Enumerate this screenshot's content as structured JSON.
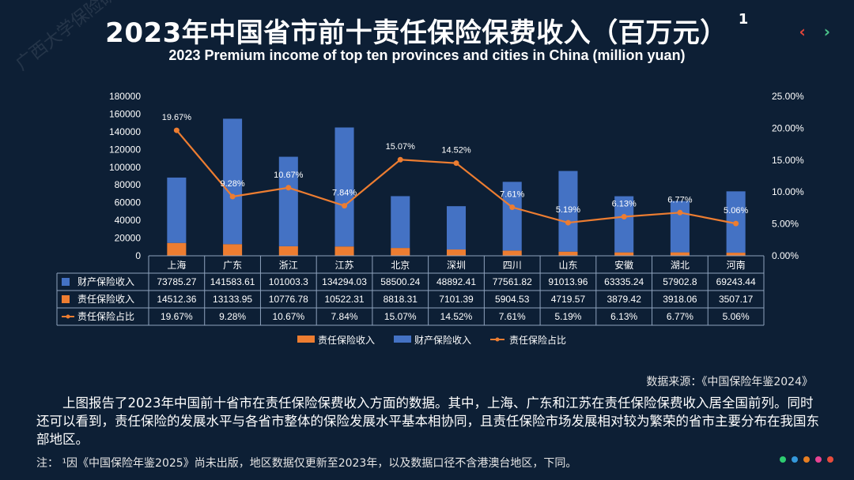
{
  "header": {
    "title": "2023年中国省市前十责任保险保费收入（百万元）",
    "footnote_mark": "1",
    "subtitle": "2023 Premium income of top ten provinces and cities in China (million yuan)",
    "watermark": "广西大学保险研究"
  },
  "nav": {
    "prev": "‹",
    "next": "›"
  },
  "chart_data": {
    "type": "bar",
    "stacked": true,
    "categories": [
      "上海",
      "广东",
      "浙江",
      "江苏",
      "北京",
      "深圳",
      "四川",
      "山东",
      "安徽",
      "湖北",
      "河南"
    ],
    "series": [
      {
        "name": "财产保险收入",
        "type": "bar",
        "axis": "left",
        "color": "#4472c4",
        "values": [
          73785.27,
          141583.61,
          101003.3,
          134294.03,
          58500.24,
          48892.41,
          77561.82,
          91013.96,
          63335.24,
          57902.8,
          69243.44
        ],
        "display": [
          "73785.27",
          "141583.61",
          "101003.3",
          "134294.03",
          "58500.24",
          "48892.41",
          "77561.82",
          "91013.96",
          "63335.24",
          "57902.8",
          "69243.44"
        ]
      },
      {
        "name": "责任保险收入",
        "type": "bar",
        "axis": "left",
        "color": "#ed7d31",
        "values": [
          14512.36,
          13133.95,
          10776.78,
          10522.31,
          8818.31,
          7101.39,
          5904.53,
          4719.57,
          3879.42,
          3918.06,
          3507.17
        ],
        "display": [
          "14512.36",
          "13133.95",
          "10776.78",
          "10522.31",
          "8818.31",
          "7101.39",
          "5904.53",
          "4719.57",
          "3879.42",
          "3918.06",
          "3507.17"
        ]
      },
      {
        "name": "责任保险占比",
        "type": "line",
        "axis": "right",
        "color": "#ed7d31",
        "values": [
          19.67,
          9.28,
          10.67,
          7.84,
          15.07,
          14.52,
          7.61,
          5.19,
          6.13,
          6.77,
          5.06
        ],
        "display": [
          "19.67%",
          "9.28%",
          "10.67%",
          "7.84%",
          "15.07%",
          "14.52%",
          "7.61%",
          "5.19%",
          "6.13%",
          "6.77%",
          "5.06%"
        ]
      }
    ],
    "y_left": {
      "lim": [
        0,
        180000
      ],
      "ticks": [
        "0",
        "20000",
        "40000",
        "60000",
        "80000",
        "100000",
        "120000",
        "140000",
        "160000",
        "180000"
      ]
    },
    "y_right": {
      "lim": [
        0,
        25
      ],
      "ticks": [
        "0.00%",
        "5.00%",
        "10.00%",
        "15.00%",
        "20.00%",
        "25.00%"
      ]
    },
    "legend": {
      "position": "bottom",
      "items": [
        {
          "label": "责任保险收入",
          "color": "#ed7d31",
          "kind": "bar"
        },
        {
          "label": "财产保险收入",
          "color": "#4472c4",
          "kind": "bar"
        },
        {
          "label": "责任保险占比",
          "color": "#ed7d31",
          "kind": "line"
        }
      ]
    },
    "data_table": true,
    "table_row_order": [
      0,
      1,
      2
    ],
    "grid": false
  },
  "source": "数据来源：《中国保险年鉴2024》",
  "paragraph": "上图报告了2023年中国前十省市在责任保险保费收入方面的数据。其中，上海、广东和江苏在责任保险保费收入居全国前列。同时还可以看到，责任保险的发展水平与各省市整体的保险发展水平基本相协同，且责任保险市场发展相对较为繁荣的省市主要分布在我国东部地区。",
  "note": "注： ¹因《中国保险年鉴2025》尚未出版，地区数据仅更新至2023年，以及数据口径不含港澳台地区，下同。",
  "decor_dots": [
    "#2ecc71",
    "#3498db",
    "#e67e22",
    "#e84393",
    "#e74c3c"
  ]
}
